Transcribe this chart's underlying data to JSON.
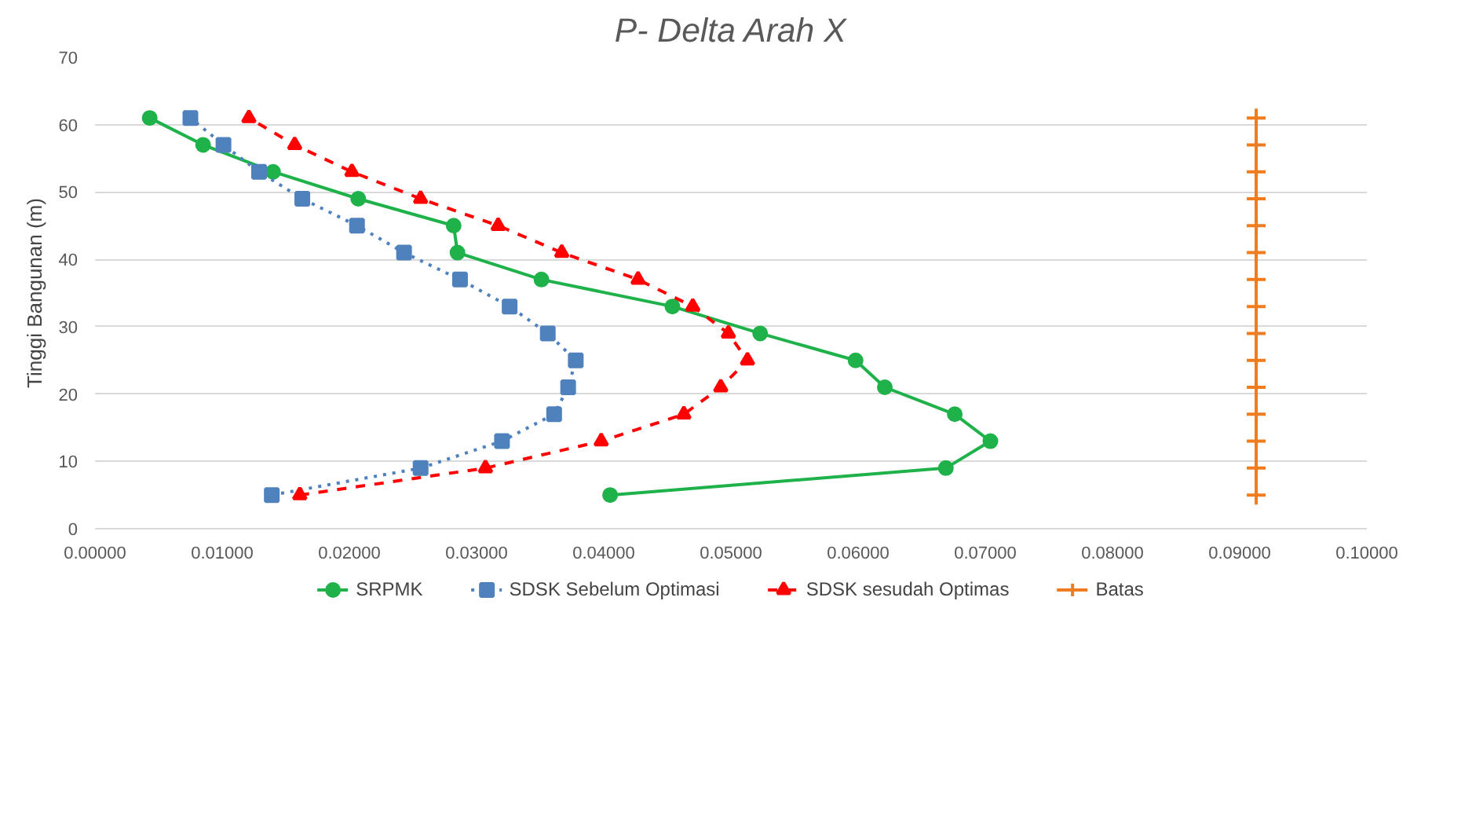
{
  "chart_data": {
    "type": "line",
    "title": "P- Delta Arah X",
    "ylabel": "Tinggi Bangunan (m)",
    "xlim": [
      0,
      0.1
    ],
    "xticks": [
      {
        "value": 0,
        "label": "0.00000"
      },
      {
        "value": 0.01,
        "label": "0.01000"
      },
      {
        "value": 0.02,
        "label": "0.02000"
      },
      {
        "value": 0.03,
        "label": "0.03000"
      },
      {
        "value": 0.04,
        "label": "0.04000"
      },
      {
        "value": 0.05,
        "label": "0.05000"
      },
      {
        "value": 0.06,
        "label": "0.06000"
      },
      {
        "value": 0.07,
        "label": "0.07000"
      },
      {
        "value": 0.08,
        "label": "0.08000"
      },
      {
        "value": 0.09,
        "label": "0.09000"
      },
      {
        "value": 0.1,
        "label": "0.10000"
      }
    ],
    "ylim": [
      0,
      70
    ],
    "yticks": [
      0,
      10,
      20,
      30,
      40,
      50,
      60,
      70
    ],
    "grid": "y",
    "legend": "bottom",
    "series": [
      {
        "name": "SRPMK",
        "color": "#1fb24a",
        "marker": "circle",
        "line_style": "solid",
        "x": [
          0.0405,
          0.0669,
          0.0704,
          0.0676,
          0.0621,
          0.0598,
          0.0523,
          0.0454,
          0.0351,
          0.0285,
          0.0282,
          0.0207,
          0.014,
          0.0085,
          0.0043
        ],
        "values": [
          5,
          9,
          13,
          17,
          21,
          25,
          29,
          33,
          37,
          41,
          45,
          49,
          53,
          57,
          61
        ]
      },
      {
        "name": "SDSK Sebelum Optimasi",
        "color": "#4f81bd",
        "marker": "square",
        "line_style": "dotted",
        "x": [
          0.0139,
          0.0256,
          0.032,
          0.0361,
          0.0372,
          0.0378,
          0.0356,
          0.0326,
          0.0287,
          0.0243,
          0.0206,
          0.0163,
          0.0129,
          0.0101,
          0.0075
        ],
        "values": [
          5,
          9,
          13,
          17,
          21,
          25,
          29,
          33,
          37,
          41,
          45,
          49,
          53,
          57,
          61
        ]
      },
      {
        "name": "SDSK sesudah Optimas",
        "color": "#ff0000",
        "marker": "triangle",
        "line_style": "dashed",
        "x": [
          0.0161,
          0.0307,
          0.0398,
          0.0463,
          0.0492,
          0.0513,
          0.0498,
          0.047,
          0.0427,
          0.0367,
          0.0317,
          0.0256,
          0.0202,
          0.0157,
          0.0121
        ],
        "values": [
          5,
          9,
          13,
          17,
          21,
          25,
          29,
          33,
          37,
          41,
          45,
          49,
          53,
          57,
          61
        ]
      },
      {
        "name": "Batas",
        "color": "#f07c1e",
        "marker": "cross",
        "line_style": "solid",
        "x": [
          0.0913,
          0.0913,
          0.0913,
          0.0913,
          0.0913,
          0.0913,
          0.0913,
          0.0913,
          0.0913,
          0.0913,
          0.0913,
          0.0913,
          0.0913,
          0.0913,
          0.0913
        ],
        "values": [
          5,
          9,
          13,
          17,
          21,
          25,
          29,
          33,
          37,
          41,
          45,
          49,
          53,
          57,
          61
        ]
      }
    ]
  }
}
